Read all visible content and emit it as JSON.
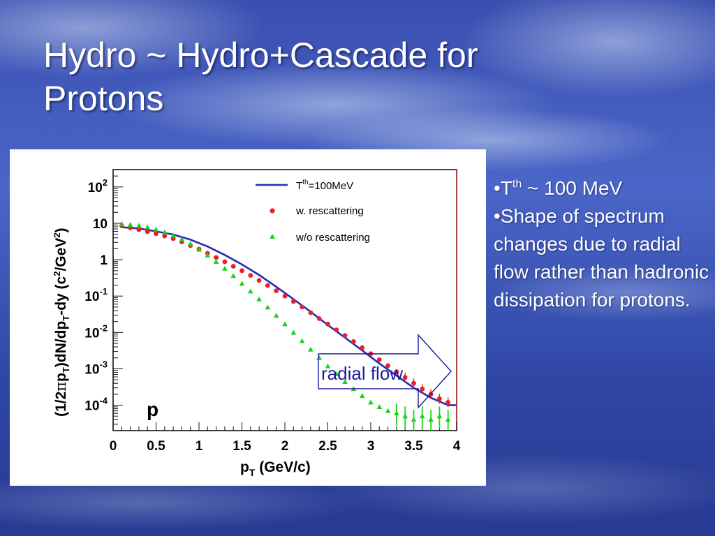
{
  "slide": {
    "title_line1": "Hydro ~ Hydro+Cascade for",
    "title_line2": "Protons",
    "bullets": [
      {
        "marker": "•T",
        "sup": "th",
        "rest": " ~ 100 MeV"
      },
      {
        "marker": "•",
        "sup": "",
        "rest": "Shape of spectrum changes due to radial flow rather than hadronic dissipation for protons."
      }
    ]
  },
  "colors": {
    "hydro_line": "#1f2fb8",
    "rescattering": "#e8202a",
    "no_rescattering": "#19d419",
    "callout_text": "#1a1aa0"
  },
  "chart_data": {
    "type": "scatter",
    "xlabel_main": "p",
    "xlabel_sub": "T",
    "xlabel_rest": " (GeV/c)",
    "ylabel": "(1/2πp_T)dN/dp_Tdy (c²/GeV²)",
    "ylabel_parts": {
      "p1": "(1/2",
      "pi": "π",
      "p2": "p",
      "s1": "T",
      "p3": ")dN/dp",
      "s2": "T",
      "p4": "-dy (c",
      "sup1": "2",
      "p5": "/GeV",
      "sup2": "2",
      "p6": ")"
    },
    "xlim": [
      0,
      4
    ],
    "ylim": [
      2e-05,
      300
    ],
    "log_y": true,
    "x_ticks": [
      {
        "v": 0,
        "label": "0"
      },
      {
        "v": 0.5,
        "label": "0.5"
      },
      {
        "v": 1,
        "label": "1"
      },
      {
        "v": 1.5,
        "label": "1.5"
      },
      {
        "v": 2,
        "label": "2"
      },
      {
        "v": 2.5,
        "label": "2.5"
      },
      {
        "v": 3,
        "label": "3"
      },
      {
        "v": 3.5,
        "label": "3.5"
      },
      {
        "v": 4,
        "label": "4"
      }
    ],
    "y_ticks": [
      {
        "v": 100,
        "base": "10",
        "exp": "2"
      },
      {
        "v": 10,
        "base": "10",
        "exp": ""
      },
      {
        "v": 1,
        "base": "1",
        "exp": ""
      },
      {
        "v": 0.1,
        "base": "10",
        "exp": "-1"
      },
      {
        "v": 0.01,
        "base": "10",
        "exp": "-2"
      },
      {
        "v": 0.001,
        "base": "10",
        "exp": "-3"
      },
      {
        "v": 0.0001,
        "base": "10",
        "exp": "-4"
      }
    ],
    "panel_label": "p",
    "legend": {
      "placement": "top-right",
      "entries": [
        {
          "main": "T",
          "sup": "th",
          "rest": "=100MeV",
          "kind": "line"
        },
        {
          "main": "w. rescattering",
          "sup": "",
          "rest": "",
          "kind": "circle"
        },
        {
          "main": "w/o rescattering",
          "sup": "",
          "rest": "",
          "kind": "triangle"
        }
      ]
    },
    "annotation": {
      "text": "radial flow"
    },
    "series": [
      {
        "name": "T^th=100MeV",
        "style": "line",
        "x": [
          0.1,
          0.3,
          0.5,
          0.7,
          0.9,
          1.1,
          1.3,
          1.5,
          1.7,
          1.9,
          2.1,
          2.3,
          2.5,
          2.7,
          2.9,
          3.1,
          3.3,
          3.5,
          3.7,
          3.9,
          4.0
        ],
        "y": [
          7.8,
          7.2,
          6.0,
          4.9,
          3.55,
          2.3,
          1.35,
          0.74,
          0.38,
          0.18,
          0.082,
          0.037,
          0.016,
          0.0072,
          0.0032,
          0.0014,
          0.00065,
          0.0003,
          0.00016,
          0.0001,
          0.0001
        ]
      },
      {
        "name": "w. rescattering",
        "style": "circle",
        "x": [
          0.1,
          0.2,
          0.3,
          0.4,
          0.5,
          0.6,
          0.7,
          0.8,
          0.9,
          1.0,
          1.1,
          1.2,
          1.3,
          1.4,
          1.5,
          1.6,
          1.7,
          1.8,
          1.9,
          2.0,
          2.1,
          2.2,
          2.3,
          2.4,
          2.5,
          2.6,
          2.7,
          2.8,
          2.9,
          3.0,
          3.1,
          3.2,
          3.3,
          3.4,
          3.5,
          3.6,
          3.7,
          3.8,
          3.9
        ],
        "y": [
          8.6,
          7.6,
          6.7,
          5.9,
          5.2,
          4.5,
          3.8,
          3.1,
          2.45,
          1.95,
          1.5,
          1.15,
          0.88,
          0.66,
          0.5,
          0.37,
          0.27,
          0.195,
          0.14,
          0.1,
          0.071,
          0.05,
          0.035,
          0.024,
          0.017,
          0.0118,
          0.0082,
          0.0056,
          0.0038,
          0.0026,
          0.00178,
          0.00122,
          0.00083,
          0.00058,
          0.0004,
          0.00028,
          0.0002,
          0.00015,
          0.00012
        ]
      },
      {
        "name": "w/o rescattering",
        "style": "triangle",
        "x": [
          0.1,
          0.2,
          0.3,
          0.4,
          0.5,
          0.6,
          0.7,
          0.8,
          0.9,
          1.0,
          1.1,
          1.2,
          1.3,
          1.4,
          1.5,
          1.6,
          1.7,
          1.8,
          1.9,
          2.0,
          2.1,
          2.2,
          2.3,
          2.4,
          2.5,
          2.6,
          2.7,
          2.8,
          2.9,
          3.0,
          3.1,
          3.2,
          3.3,
          3.4,
          3.5,
          3.6,
          3.7,
          3.8,
          3.9
        ],
        "y": [
          9.6,
          9.2,
          8.6,
          7.8,
          6.8,
          5.7,
          4.6,
          3.6,
          2.7,
          1.9,
          1.32,
          0.88,
          0.57,
          0.36,
          0.22,
          0.135,
          0.082,
          0.049,
          0.029,
          0.017,
          0.0099,
          0.0058,
          0.0034,
          0.002,
          0.00118,
          0.00072,
          0.00044,
          0.00028,
          0.00018,
          0.00012,
          9e-05,
          7e-05,
          6e-05,
          5e-05,
          4e-05,
          5e-05,
          4e-05,
          5e-05,
          4e-05
        ]
      }
    ]
  }
}
